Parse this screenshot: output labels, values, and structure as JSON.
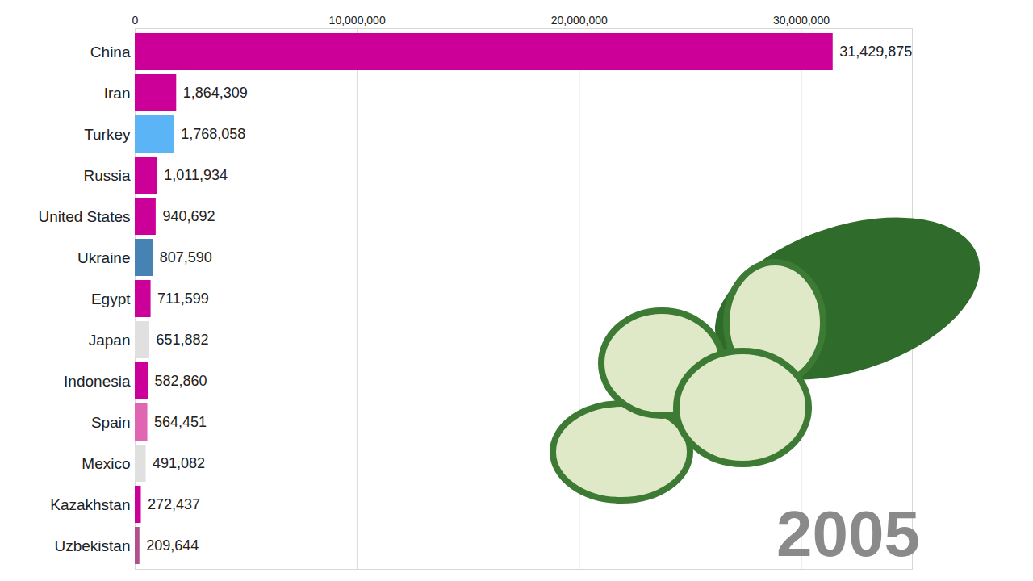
{
  "chart_data": {
    "type": "bar",
    "orientation": "horizontal",
    "categories": [
      "China",
      "Iran",
      "Turkey",
      "Russia",
      "United States",
      "Ukraine",
      "Egypt",
      "Japan",
      "Indonesia",
      "Spain",
      "Mexico",
      "Kazakhstan",
      "Uzbekistan"
    ],
    "values": [
      31429875,
      1864309,
      1768058,
      1011934,
      940692,
      807590,
      711599,
      651882,
      582860,
      564451,
      491082,
      272437,
      209644
    ],
    "value_labels": [
      "31,429,875",
      "1,864,309",
      "1,768,058",
      "1,011,934",
      "940,692",
      "807,590",
      "711,599",
      "651,882",
      "582,860",
      "564,451",
      "491,082",
      "272,437",
      "209,644"
    ],
    "colors": [
      "#cc0099",
      "#cc0099",
      "#5ab4f5",
      "#cc0099",
      "#cc0099",
      "#4682b4",
      "#cc0099",
      "#e0e0e0",
      "#cc0099",
      "#e066b3",
      "#e0e0e0",
      "#cc0099",
      "#b0508f"
    ],
    "xlim": [
      0,
      35000000
    ],
    "xticks": [
      0,
      {
        "value": 10000000,
        "label": "10,000,000"
      },
      {
        "value": 20000000,
        "label": "20,000,000"
      },
      {
        "value": 30000000,
        "label": "30,000,000"
      }
    ],
    "grid": true,
    "data_labels": true,
    "annotation": "2005"
  }
}
